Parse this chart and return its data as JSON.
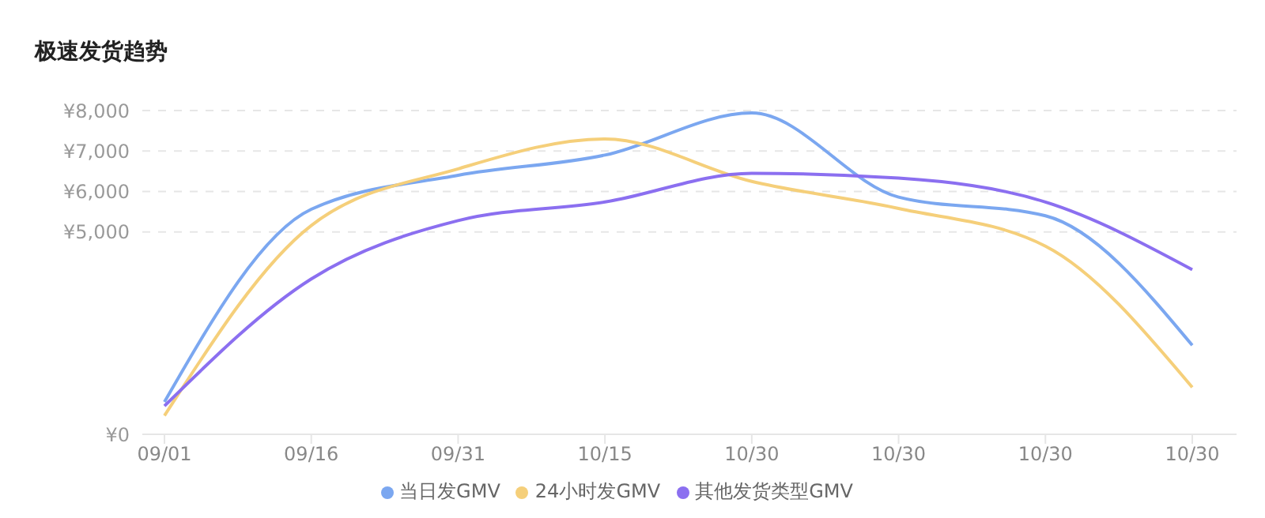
{
  "chart_data": {
    "type": "line",
    "title": "极速发货趋势",
    "categories": [
      "09/01",
      "09/16",
      "09/31",
      "10/15",
      "10/30",
      "10/30",
      "10/30",
      "10/30"
    ],
    "series": [
      {
        "name": "当日发GMV",
        "color": "#7ba7f0",
        "values": [
          800,
          5560,
          6400,
          6900,
          7940,
          5860,
          5400,
          2200
        ]
      },
      {
        "name": "24小时发GMV",
        "color": "#f5cf7a",
        "values": [
          460,
          5160,
          6560,
          7300,
          6250,
          5580,
          4650,
          1160
        ]
      },
      {
        "name": "其他发货类型GMV",
        "color": "#8b6ff0",
        "values": [
          700,
          3840,
          5280,
          5740,
          6450,
          6330,
          5740,
          4070
        ]
      }
    ],
    "ylim": [
      0,
      8000
    ],
    "yticks": [
      {
        "value": 0,
        "label": "¥0"
      },
      {
        "value": 5000,
        "label": "¥5,000"
      },
      {
        "value": 6000,
        "label": "¥6,000"
      },
      {
        "value": 7000,
        "label": "¥7,000"
      },
      {
        "value": 8000,
        "label": "¥8,000"
      }
    ],
    "grid": "y",
    "legend": "bottom",
    "marker": "none",
    "line_style": "solid"
  }
}
